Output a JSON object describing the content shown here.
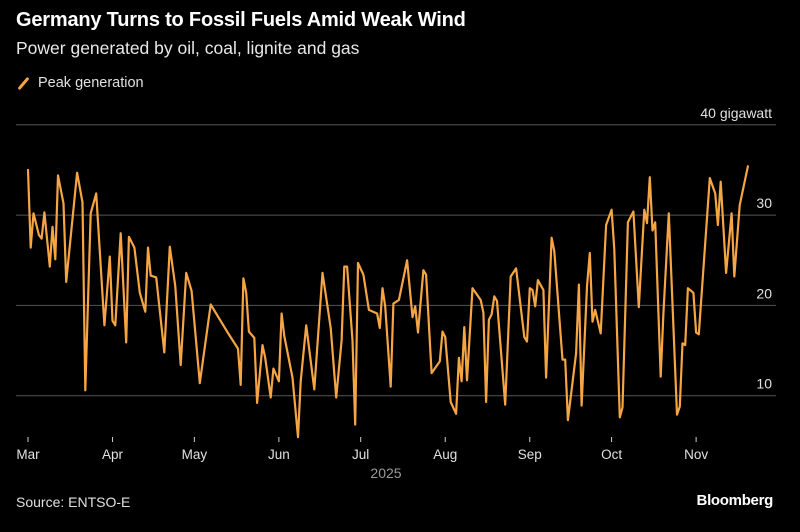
{
  "header": {
    "title": "Germany Turns to Fossil Fuels Amid Weak Wind",
    "subtitle": "Power generated by oil, coal, lignite and gas"
  },
  "footer": {
    "source": "Source: ENTSO-E",
    "brand": "Bloomberg"
  },
  "colors": {
    "series": "#f5a544",
    "background": "#000000",
    "grid": "#555555"
  },
  "chart_data": {
    "type": "line",
    "title": "Germany Turns to Fossil Fuels Amid Weak Wind",
    "subtitle": "Power generated by oil, coal, lignite and gas",
    "xlabel": "2025",
    "ylabel": "",
    "y_unit_label": "40 gigawatt",
    "ylim": [
      0,
      40
    ],
    "xlim": [
      "2025-03-01",
      "2025-11-20"
    ],
    "grid": true,
    "legend_position": "top-left",
    "y_ticks": [
      {
        "value": 40,
        "label": "40 gigawatt"
      },
      {
        "value": 30,
        "label": "30"
      },
      {
        "value": 20,
        "label": "20"
      },
      {
        "value": 10,
        "label": "10"
      }
    ],
    "x_ticks": [
      {
        "date": "2025-03-01",
        "label": "Mar"
      },
      {
        "date": "2025-04-01",
        "label": "Apr"
      },
      {
        "date": "2025-05-01",
        "label": "May"
      },
      {
        "date": "2025-06-01",
        "label": "Jun"
      },
      {
        "date": "2025-07-01",
        "label": "Jul"
      },
      {
        "date": "2025-08-01",
        "label": "Aug"
      },
      {
        "date": "2025-09-01",
        "label": "Sep"
      },
      {
        "date": "2025-10-01",
        "label": "Oct"
      },
      {
        "date": "2025-11-01",
        "label": "Nov"
      }
    ],
    "series": [
      {
        "name": "Peak generation",
        "color": "#f5a544",
        "points": [
          [
            "2025-03-01",
            35.0
          ],
          [
            "2025-03-02",
            26.4
          ],
          [
            "2025-03-03",
            30.2
          ],
          [
            "2025-03-05",
            27.8
          ],
          [
            "2025-03-06",
            27.4
          ],
          [
            "2025-03-07",
            30.3
          ],
          [
            "2025-03-09",
            24.3
          ],
          [
            "2025-03-10",
            28.7
          ],
          [
            "2025-03-11",
            25.1
          ],
          [
            "2025-03-12",
            34.4
          ],
          [
            "2025-03-14",
            31.3
          ],
          [
            "2025-03-15",
            22.6
          ],
          [
            "2025-03-19",
            34.7
          ],
          [
            "2025-03-21",
            31.4
          ],
          [
            "2025-03-22",
            10.6
          ],
          [
            "2025-03-24",
            30.2
          ],
          [
            "2025-03-26",
            32.4
          ],
          [
            "2025-03-29",
            17.8
          ],
          [
            "2025-03-31",
            25.4
          ],
          [
            "2025-04-01",
            18.3
          ],
          [
            "2025-04-02",
            17.8
          ],
          [
            "2025-04-04",
            28.0
          ],
          [
            "2025-04-06",
            15.9
          ],
          [
            "2025-04-07",
            27.6
          ],
          [
            "2025-04-09",
            26.4
          ],
          [
            "2025-04-11",
            21.4
          ],
          [
            "2025-04-13",
            19.3
          ],
          [
            "2025-04-14",
            26.4
          ],
          [
            "2025-04-15",
            23.3
          ],
          [
            "2025-04-17",
            23.1
          ],
          [
            "2025-04-20",
            14.8
          ],
          [
            "2025-04-22",
            26.5
          ],
          [
            "2025-04-24",
            22.1
          ],
          [
            "2025-04-26",
            13.4
          ],
          [
            "2025-04-28",
            23.6
          ],
          [
            "2025-04-30",
            21.6
          ],
          [
            "2025-05-03",
            11.4
          ],
          [
            "2025-05-07",
            20.1
          ],
          [
            "2025-05-13",
            17.1
          ],
          [
            "2025-05-17",
            15.2
          ],
          [
            "2025-05-18",
            11.2
          ],
          [
            "2025-05-19",
            23.0
          ],
          [
            "2025-05-20",
            21.4
          ],
          [
            "2025-05-21",
            17.1
          ],
          [
            "2025-05-23",
            16.4
          ],
          [
            "2025-05-24",
            9.2
          ],
          [
            "2025-05-26",
            15.6
          ],
          [
            "2025-05-27",
            14.2
          ],
          [
            "2025-05-29",
            9.8
          ],
          [
            "2025-05-30",
            13.0
          ],
          [
            "2025-06-01",
            11.6
          ],
          [
            "2025-06-02",
            19.1
          ],
          [
            "2025-06-03",
            16.6
          ],
          [
            "2025-06-06",
            12.0
          ],
          [
            "2025-06-08",
            5.4
          ],
          [
            "2025-06-09",
            11.6
          ],
          [
            "2025-06-11",
            17.8
          ],
          [
            "2025-06-14",
            10.7
          ],
          [
            "2025-06-17",
            23.6
          ],
          [
            "2025-06-20",
            17.5
          ],
          [
            "2025-06-22",
            9.8
          ],
          [
            "2025-06-24",
            16.1
          ],
          [
            "2025-06-25",
            24.3
          ],
          [
            "2025-06-26",
            24.3
          ],
          [
            "2025-06-28",
            16.1
          ],
          [
            "2025-06-29",
            6.8
          ],
          [
            "2025-06-30",
            24.7
          ],
          [
            "2025-07-02",
            23.4
          ],
          [
            "2025-07-04",
            19.5
          ],
          [
            "2025-07-07",
            19.1
          ],
          [
            "2025-07-08",
            17.5
          ],
          [
            "2025-07-09",
            21.9
          ],
          [
            "2025-07-10",
            19.9
          ],
          [
            "2025-07-12",
            11.0
          ],
          [
            "2025-07-13",
            20.2
          ],
          [
            "2025-07-15",
            20.6
          ],
          [
            "2025-07-18",
            25.0
          ],
          [
            "2025-07-20",
            18.7
          ],
          [
            "2025-07-21",
            19.9
          ],
          [
            "2025-07-22",
            17.0
          ],
          [
            "2025-07-24",
            23.9
          ],
          [
            "2025-07-25",
            23.4
          ],
          [
            "2025-07-27",
            12.5
          ],
          [
            "2025-07-30",
            13.8
          ],
          [
            "2025-07-31",
            17.1
          ],
          [
            "2025-08-01",
            16.5
          ],
          [
            "2025-08-03",
            9.3
          ],
          [
            "2025-08-05",
            8.0
          ],
          [
            "2025-08-06",
            14.2
          ],
          [
            "2025-08-07",
            11.6
          ],
          [
            "2025-08-08",
            17.6
          ],
          [
            "2025-08-09",
            11.7
          ],
          [
            "2025-08-11",
            21.9
          ],
          [
            "2025-08-14",
            20.6
          ],
          [
            "2025-08-15",
            19.2
          ],
          [
            "2025-08-16",
            9.3
          ],
          [
            "2025-08-17",
            18.4
          ],
          [
            "2025-08-18",
            19.0
          ],
          [
            "2025-08-19",
            21.0
          ],
          [
            "2025-08-20",
            20.5
          ],
          [
            "2025-08-23",
            9.0
          ],
          [
            "2025-08-25",
            23.2
          ],
          [
            "2025-08-27",
            24.1
          ],
          [
            "2025-08-30",
            16.5
          ],
          [
            "2025-08-31",
            16.0
          ],
          [
            "2025-09-01",
            21.9
          ],
          [
            "2025-09-02",
            21.7
          ],
          [
            "2025-09-03",
            19.9
          ],
          [
            "2025-09-04",
            22.8
          ],
          [
            "2025-09-06",
            21.7
          ],
          [
            "2025-09-07",
            12.0
          ],
          [
            "2025-09-09",
            27.5
          ],
          [
            "2025-09-10",
            26.0
          ],
          [
            "2025-09-13",
            14.0
          ],
          [
            "2025-09-14",
            14.0
          ],
          [
            "2025-09-15",
            7.3
          ],
          [
            "2025-09-18",
            14.7
          ],
          [
            "2025-09-19",
            22.3
          ],
          [
            "2025-09-20",
            8.9
          ],
          [
            "2025-09-22",
            22.1
          ],
          [
            "2025-09-23",
            25.8
          ],
          [
            "2025-09-24",
            18.2
          ],
          [
            "2025-09-25",
            19.5
          ],
          [
            "2025-09-27",
            16.9
          ],
          [
            "2025-09-29",
            28.9
          ],
          [
            "2025-10-01",
            30.6
          ],
          [
            "2025-10-02",
            26.2
          ],
          [
            "2025-10-04",
            7.6
          ],
          [
            "2025-10-05",
            8.7
          ],
          [
            "2025-10-07",
            29.2
          ],
          [
            "2025-10-09",
            30.4
          ],
          [
            "2025-10-11",
            19.8
          ],
          [
            "2025-10-13",
            30.6
          ],
          [
            "2025-10-14",
            29.1
          ],
          [
            "2025-10-15",
            34.2
          ],
          [
            "2025-10-16",
            28.3
          ],
          [
            "2025-10-17",
            29.2
          ],
          [
            "2025-10-19",
            12.1
          ],
          [
            "2025-10-20",
            19.1
          ],
          [
            "2025-10-22",
            30.2
          ],
          [
            "2025-10-25",
            7.9
          ],
          [
            "2025-10-26",
            8.8
          ],
          [
            "2025-10-27",
            15.8
          ],
          [
            "2025-10-28",
            15.6
          ],
          [
            "2025-10-29",
            21.9
          ],
          [
            "2025-10-31",
            21.4
          ],
          [
            "2025-11-01",
            17.0
          ],
          [
            "2025-11-02",
            16.8
          ],
          [
            "2025-11-06",
            34.1
          ],
          [
            "2025-11-08",
            32.4
          ],
          [
            "2025-11-09",
            28.9
          ],
          [
            "2025-11-10",
            33.7
          ],
          [
            "2025-11-12",
            23.6
          ],
          [
            "2025-11-14",
            30.2
          ],
          [
            "2025-11-15",
            23.2
          ],
          [
            "2025-11-17",
            31.1
          ],
          [
            "2025-11-20",
            35.4
          ]
        ]
      }
    ]
  }
}
